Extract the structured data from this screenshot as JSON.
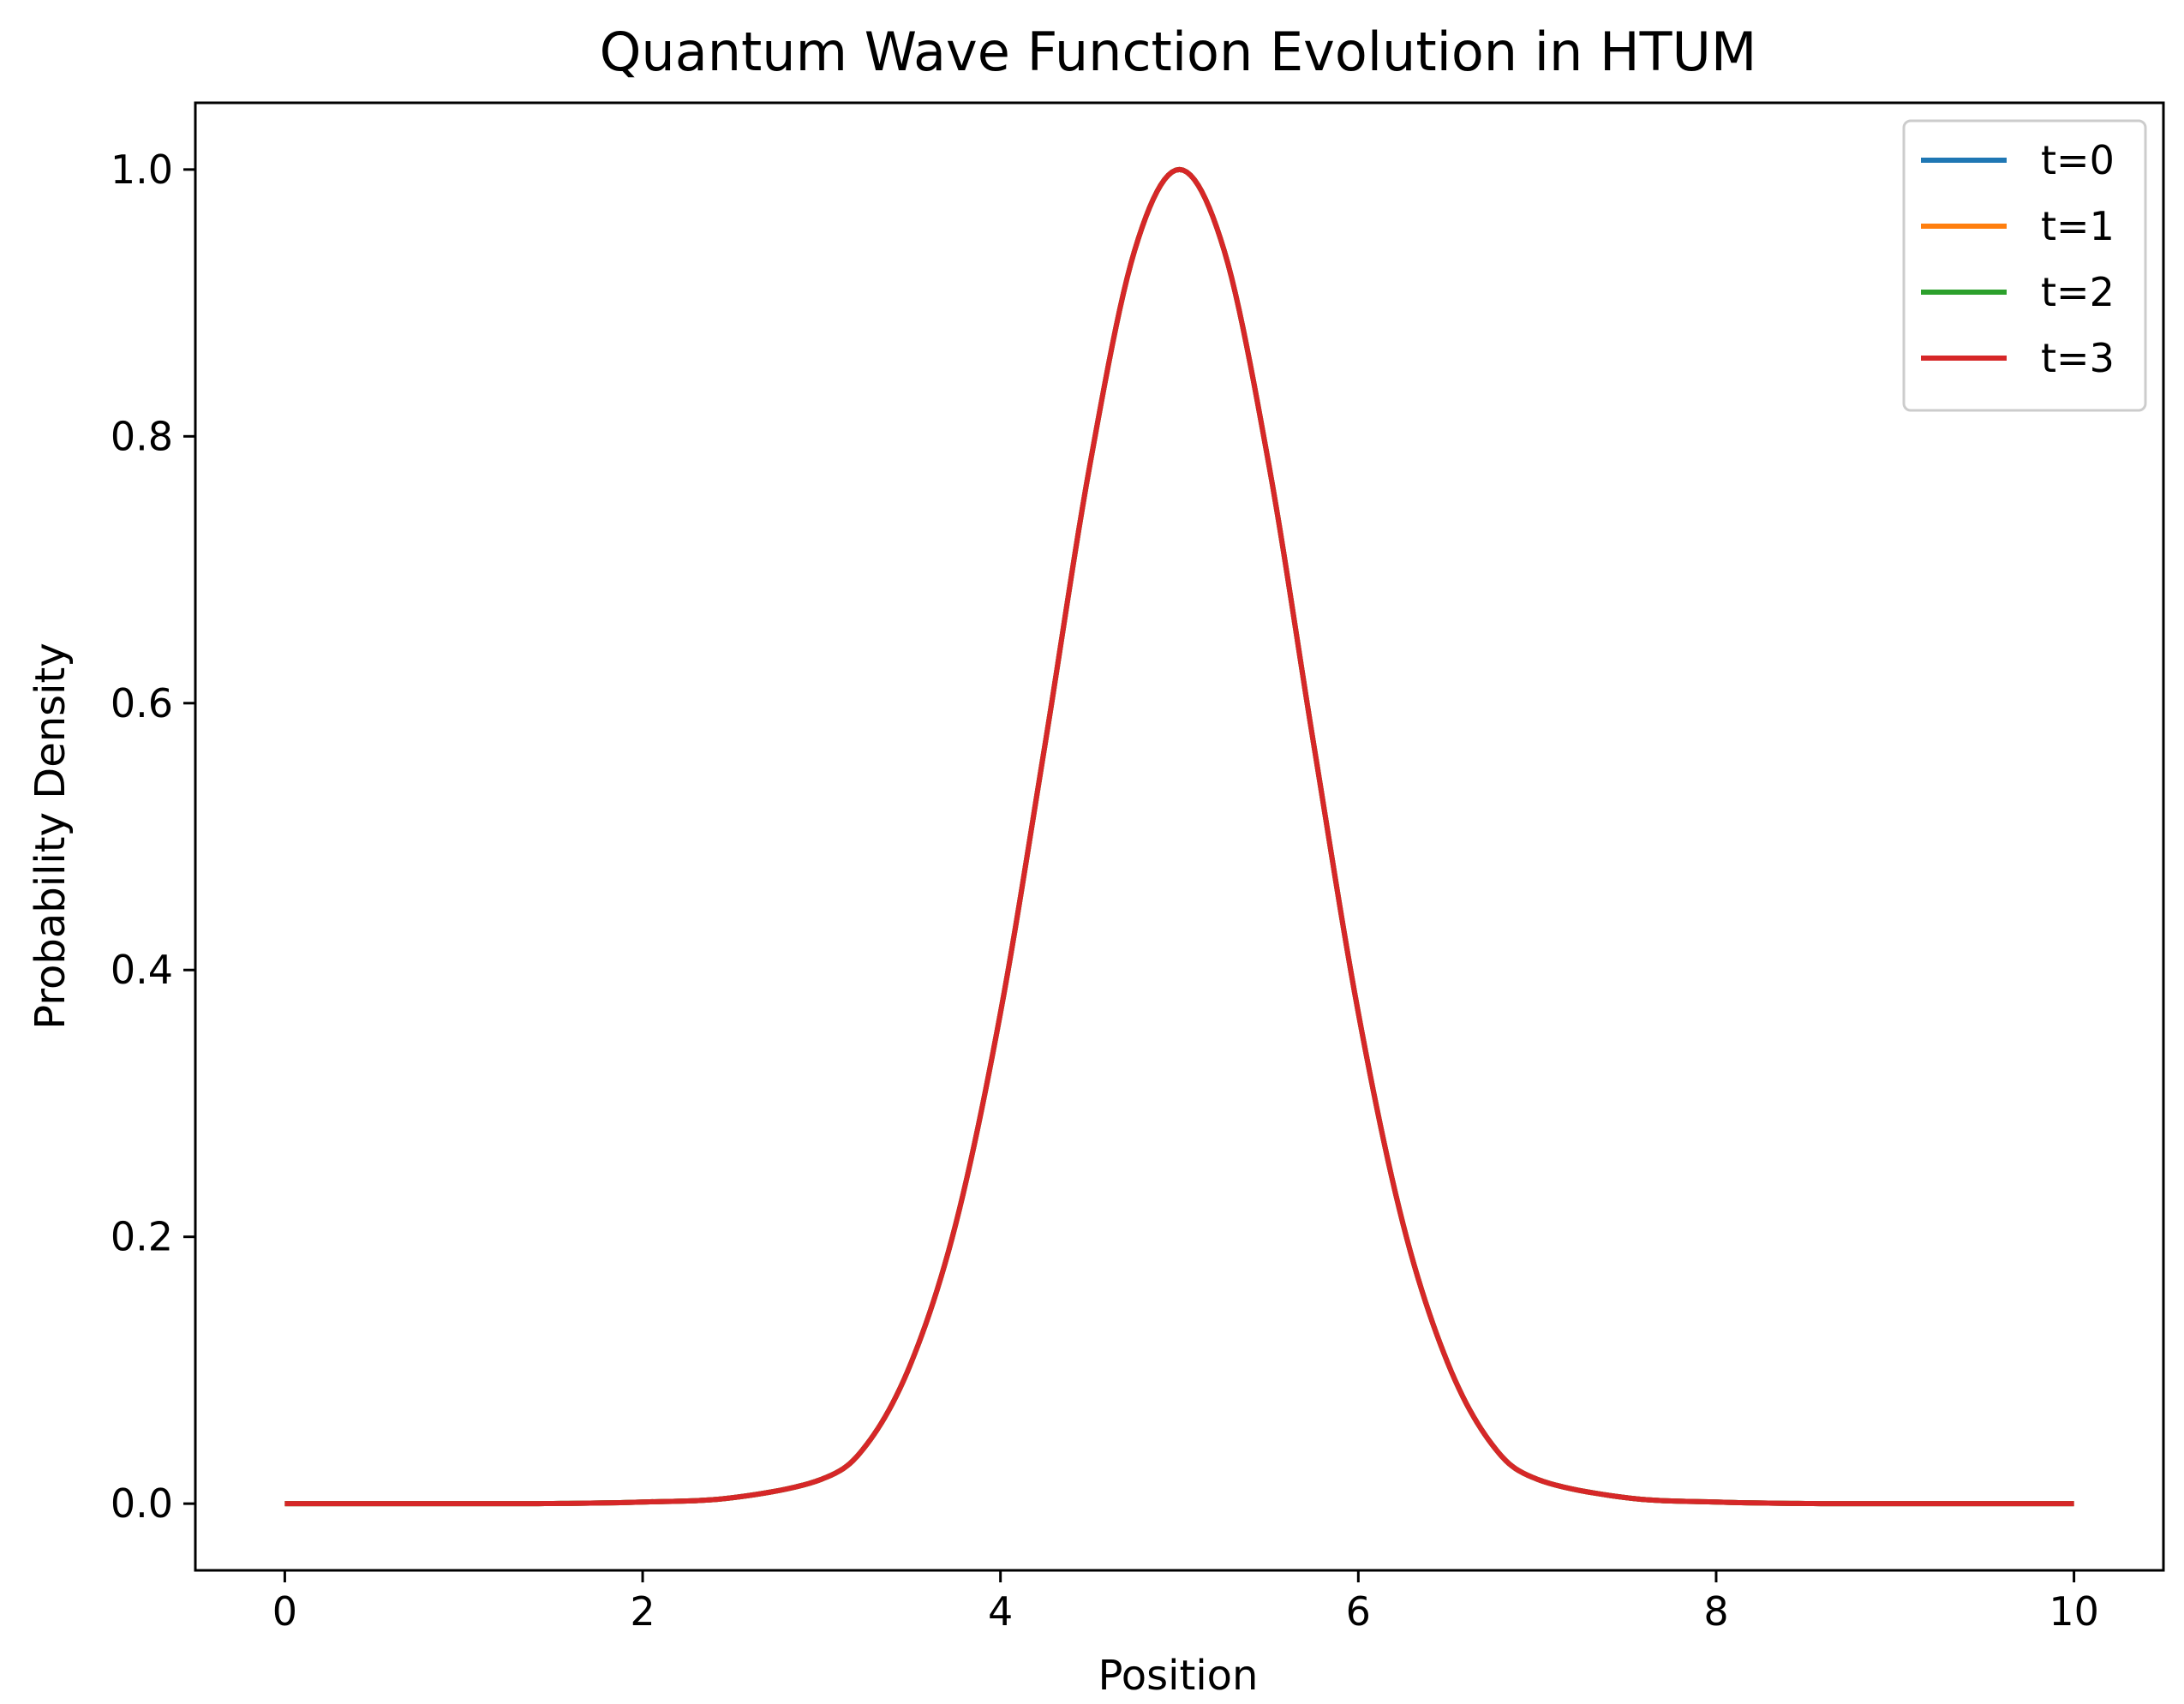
{
  "chart_data": {
    "type": "line",
    "title": "Quantum Wave Function Evolution in HTUM",
    "xlabel": "Position",
    "ylabel": "Probability Density",
    "xlim": [
      -0.5,
      10.5
    ],
    "ylim": [
      -0.05,
      1.05
    ],
    "x_ticks": [
      0,
      2,
      4,
      6,
      8,
      10
    ],
    "x_tick_labels": [
      "0",
      "2",
      "4",
      "6",
      "8",
      "10"
    ],
    "y_ticks": [
      0.0,
      0.2,
      0.4,
      0.6,
      0.8,
      1.0
    ],
    "y_tick_labels": [
      "0.0",
      "0.2",
      "0.4",
      "0.6",
      "0.8",
      "1.0"
    ],
    "grid": false,
    "legend_position": "top-right",
    "x": [
      0,
      0.5,
      1,
      1.5,
      2,
      2.5,
      3,
      3.25,
      3.5,
      3.75,
      4,
      4.25,
      4.5,
      4.75,
      5,
      5.25,
      5.5,
      5.75,
      6,
      6.25,
      6.5,
      6.75,
      7,
      7.5,
      8,
      8.5,
      9,
      9.5,
      10
    ],
    "series": [
      {
        "name": "t=0",
        "color": "#1f77b4",
        "values": [
          0.0,
          0.0,
          0.0,
          0.0001,
          0.0012,
          0.0044,
          0.0183,
          0.0439,
          0.1054,
          0.2096,
          0.3679,
          0.5698,
          0.7788,
          0.9394,
          1.0,
          0.9394,
          0.7788,
          0.5698,
          0.3679,
          0.2096,
          0.1054,
          0.0439,
          0.0183,
          0.0044,
          0.0012,
          0.0001,
          0.0,
          0.0,
          0.0
        ]
      },
      {
        "name": "t=1",
        "color": "#ff7f0e",
        "values": [
          0.0,
          0.0,
          0.0,
          0.0001,
          0.0012,
          0.0044,
          0.0183,
          0.0439,
          0.1054,
          0.2096,
          0.3679,
          0.5698,
          0.7788,
          0.9394,
          1.0,
          0.9394,
          0.7788,
          0.5698,
          0.3679,
          0.2096,
          0.1054,
          0.0439,
          0.0183,
          0.0044,
          0.0012,
          0.0001,
          0.0,
          0.0,
          0.0
        ]
      },
      {
        "name": "t=2",
        "color": "#2ca02c",
        "values": [
          0.0,
          0.0,
          0.0,
          0.0001,
          0.0012,
          0.0044,
          0.0183,
          0.0439,
          0.1054,
          0.2096,
          0.3679,
          0.5698,
          0.7788,
          0.9394,
          1.0,
          0.9394,
          0.7788,
          0.5698,
          0.3679,
          0.2096,
          0.1054,
          0.0439,
          0.0183,
          0.0044,
          0.0012,
          0.0001,
          0.0,
          0.0,
          0.0
        ]
      },
      {
        "name": "t=3",
        "color": "#d62728",
        "values": [
          0.0,
          0.0,
          0.0,
          0.0001,
          0.0012,
          0.0044,
          0.0183,
          0.0439,
          0.1054,
          0.2096,
          0.3679,
          0.5698,
          0.7788,
          0.9394,
          1.0,
          0.9394,
          0.7788,
          0.5698,
          0.3679,
          0.2096,
          0.1054,
          0.0439,
          0.0183,
          0.0044,
          0.0012,
          0.0001,
          0.0,
          0.0,
          0.0
        ]
      }
    ]
  }
}
